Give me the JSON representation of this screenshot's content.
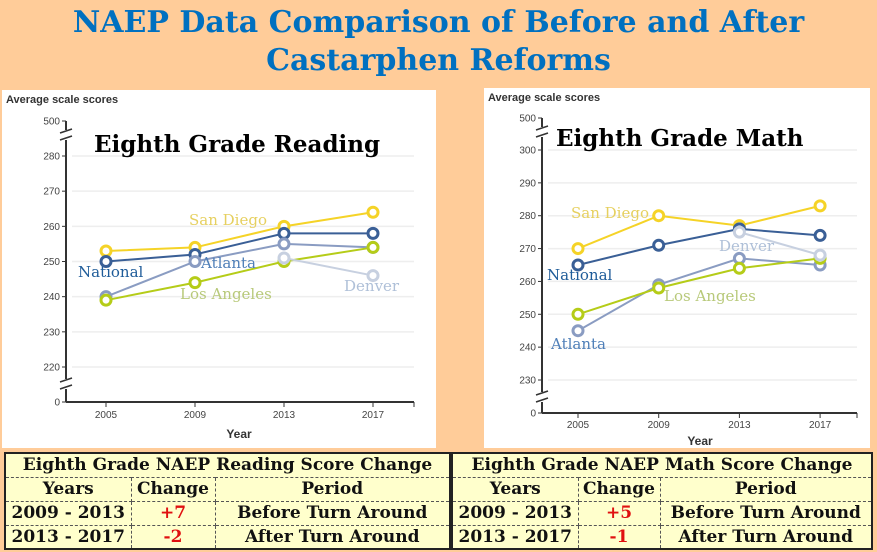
{
  "title": {
    "line1": "NAEP Data Comparison of Before and After",
    "line2": "Castarphen Reforms"
  },
  "colors": {
    "background": "#FFCC99",
    "title": "#0070C0",
    "table_bg": "#FFFFCC",
    "change": "#E01010"
  },
  "chart_data": [
    {
      "type": "line",
      "title": "Eighth Grade Reading",
      "ylabel": "Average scale scores",
      "xlabel": "Year",
      "x": [
        2005,
        2009,
        2013,
        2017
      ],
      "yticks": [
        0,
        220,
        230,
        240,
        250,
        260,
        270,
        280,
        500
      ],
      "axis_break": true,
      "grid": true,
      "series": [
        {
          "name": "San Diego",
          "color": "#F5D327",
          "label_color": "#E6D060",
          "values": [
            253,
            254,
            260,
            264
          ]
        },
        {
          "name": "National",
          "color": "#3A5F96",
          "label_color": "#1F5C99",
          "values": [
            250,
            252,
            258,
            258
          ]
        },
        {
          "name": "Atlanta",
          "color": "#8A9CC2",
          "label_color": "#4F7FB8",
          "values": [
            240,
            250,
            255,
            254
          ]
        },
        {
          "name": "Los Angeles",
          "color": "#B5CC18",
          "label_color": "#B8C97A",
          "values": [
            239,
            244,
            250,
            254
          ]
        },
        {
          "name": "Denver",
          "color": "#C7D0E0",
          "label_color": "#AFC0D8",
          "values": [
            null,
            null,
            251,
            246
          ]
        }
      ]
    },
    {
      "type": "line",
      "title": "Eighth Grade Math",
      "ylabel": "Average scale scores",
      "xlabel": "Year",
      "x": [
        2005,
        2009,
        2013,
        2017
      ],
      "yticks": [
        0,
        230,
        240,
        250,
        260,
        270,
        280,
        290,
        300,
        500
      ],
      "axis_break": true,
      "grid": true,
      "series": [
        {
          "name": "San Diego",
          "color": "#F5D327",
          "label_color": "#E6D060",
          "values": [
            270,
            280,
            277,
            283
          ]
        },
        {
          "name": "National",
          "color": "#3A5F96",
          "label_color": "#1F5C99",
          "values": [
            265,
            271,
            276,
            274
          ]
        },
        {
          "name": "Atlanta",
          "color": "#8A9CC2",
          "label_color": "#4F7FB8",
          "values": [
            245,
            259,
            267,
            265
          ]
        },
        {
          "name": "Los Angeles",
          "color": "#B5CC18",
          "label_color": "#B8C97A",
          "values": [
            250,
            258,
            264,
            267
          ]
        },
        {
          "name": "Denver",
          "color": "#C7D0E0",
          "label_color": "#AFC0D8",
          "values": [
            null,
            null,
            275,
            268
          ]
        }
      ]
    }
  ],
  "tables": [
    {
      "title": "Eighth Grade NAEP Reading Score Change",
      "headers": [
        "Years",
        "Change",
        "Period"
      ],
      "rows": [
        [
          "2009 - 2013",
          "+7",
          "Before Turn Around"
        ],
        [
          "2013 - 2017",
          "-2",
          "After Turn Around"
        ]
      ]
    },
    {
      "title": "Eighth Grade NAEP Math Score Change",
      "headers": [
        "Years",
        "Change",
        "Period"
      ],
      "rows": [
        [
          "2009 - 2013",
          "+5",
          "Before Turn Around"
        ],
        [
          "2013 - 2017",
          "-1",
          "After Turn Around"
        ]
      ]
    }
  ]
}
